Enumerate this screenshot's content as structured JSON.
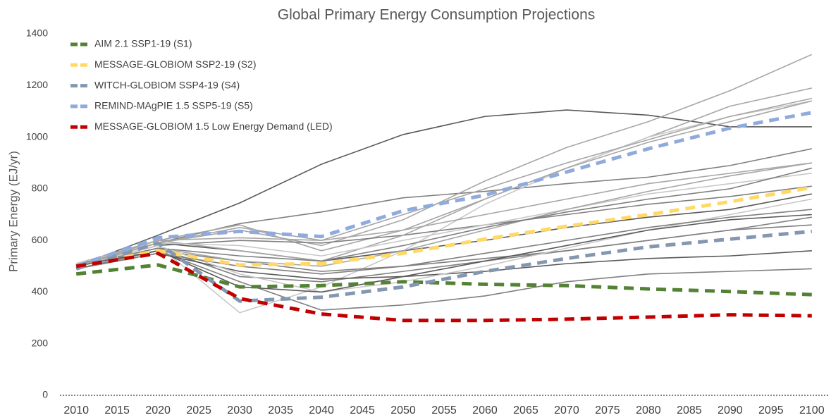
{
  "chart_data": {
    "type": "line",
    "title": "Global Primary Energy Consumption Projections",
    "y_label": "Primary Energy (EJ/yr)",
    "x": [
      2010,
      2020,
      2030,
      2040,
      2050,
      2060,
      2070,
      2080,
      2090,
      2100
    ],
    "xlim": [
      2008,
      2102
    ],
    "xticks": [
      2010,
      2015,
      2020,
      2025,
      2030,
      2035,
      2040,
      2045,
      2050,
      2055,
      2060,
      2065,
      2070,
      2075,
      2080,
      2085,
      2090,
      2095,
      2100
    ],
    "ylim": [
      0,
      1400
    ],
    "yticks": [
      0,
      200,
      400,
      600,
      800,
      1000,
      1200,
      1400
    ],
    "legend": "top-left",
    "series": [
      {
        "color": "#595959",
        "values": [
          500,
          620,
          745,
          895,
          1010,
          1080,
          1105,
          1085,
          1040,
          1040
        ]
      },
      {
        "color": "#7f7f7f",
        "values": [
          500,
          590,
          665,
          710,
          765,
          790,
          820,
          845,
          890,
          955
        ]
      },
      {
        "color": "#a6a6a6",
        "values": [
          510,
          600,
          660,
          560,
          640,
          760,
          880,
          1000,
          1120,
          1190
        ]
      },
      {
        "color": "#a6a6a6",
        "values": [
          510,
          590,
          640,
          580,
          680,
          830,
          960,
          1060,
          1180,
          1320
        ]
      },
      {
        "color": "#c8c8c8",
        "values": [
          500,
          580,
          320,
          420,
          560,
          740,
          880,
          1000,
          1080,
          1140
        ]
      },
      {
        "color": "#7f7f7f",
        "values": [
          490,
          560,
          440,
          330,
          350,
          385,
          440,
          470,
          480,
          490
        ]
      },
      {
        "color": "#7f7f7f",
        "values": [
          500,
          580,
          600,
          590,
          620,
          660,
          700,
          740,
          770,
          810
        ]
      },
      {
        "color": "#595959",
        "values": [
          500,
          590,
          560,
          520,
          560,
          600,
          650,
          690,
          720,
          780
        ]
      },
      {
        "color": "#7f7f7f",
        "values": [
          490,
          560,
          520,
          480,
          500,
          530,
          560,
          600,
          640,
          660
        ]
      },
      {
        "color": "#a6a6a6",
        "values": [
          510,
          600,
          560,
          520,
          620,
          760,
          880,
          980,
          1060,
          1140
        ]
      },
      {
        "color": "#c8c8c8",
        "values": [
          510,
          590,
          580,
          540,
          600,
          660,
          720,
          780,
          820,
          860
        ]
      },
      {
        "color": "#7f7f7f",
        "values": [
          500,
          570,
          460,
          440,
          480,
          520,
          560,
          600,
          640,
          690
        ]
      },
      {
        "color": "#a6a6a6",
        "values": [
          500,
          570,
          520,
          500,
          560,
          640,
          720,
          790,
          850,
          900
        ]
      },
      {
        "color": "#595959",
        "values": [
          490,
          550,
          480,
          450,
          460,
          480,
          510,
          530,
          540,
          560
        ]
      },
      {
        "color": "#a6a6a6",
        "values": [
          500,
          600,
          610,
          600,
          700,
          800,
          900,
          990,
          1080,
          1150
        ]
      },
      {
        "color": "#7f7f7f",
        "values": [
          500,
          570,
          540,
          520,
          580,
          650,
          710,
          760,
          800,
          880
        ]
      },
      {
        "color": "#c8c8c8",
        "values": [
          500,
          580,
          470,
          400,
          440,
          500,
          570,
          640,
          700,
          760
        ]
      },
      {
        "color": "#595959",
        "values": [
          500,
          560,
          420,
          400,
          460,
          520,
          580,
          640,
          680,
          700
        ]
      },
      {
        "color": "#a6a6a6",
        "values": [
          500,
          590,
          650,
          600,
          640,
          700,
          760,
          820,
          860,
          900
        ]
      },
      {
        "color": "#7f7f7f",
        "values": [
          490,
          550,
          500,
          470,
          500,
          550,
          600,
          650,
          690,
          720
        ]
      },
      {
        "name": "AIM 2.1 SSP1-19 (S1)",
        "color": "#548235",
        "values": [
          470,
          505,
          420,
          425,
          440,
          430,
          425,
          412,
          402,
          390
        ]
      },
      {
        "name": "MESSAGE-GLOBIOM SSP2-19 (S2)",
        "color": "#ffd966",
        "values": [
          500,
          560,
          505,
          510,
          550,
          605,
          655,
          700,
          750,
          805
        ]
      },
      {
        "name": "WITCH-GLOBIOM SSP4-19 (S4)",
        "color": "#8497b0",
        "values": [
          490,
          590,
          365,
          380,
          420,
          480,
          530,
          575,
          605,
          635
        ]
      },
      {
        "name": "REMIND-MAgPIE 1.5 SSP5-19 (S5)",
        "color": "#8faadc",
        "values": [
          500,
          610,
          635,
          615,
          715,
          775,
          865,
          955,
          1035,
          1095
        ]
      },
      {
        "name": "MESSAGE-GLOBIOM 1.5 Low Energy Demand (LED)",
        "color": "#c00000",
        "values": [
          500,
          550,
          375,
          315,
          290,
          290,
          295,
          303,
          312,
          308
        ]
      }
    ]
  }
}
